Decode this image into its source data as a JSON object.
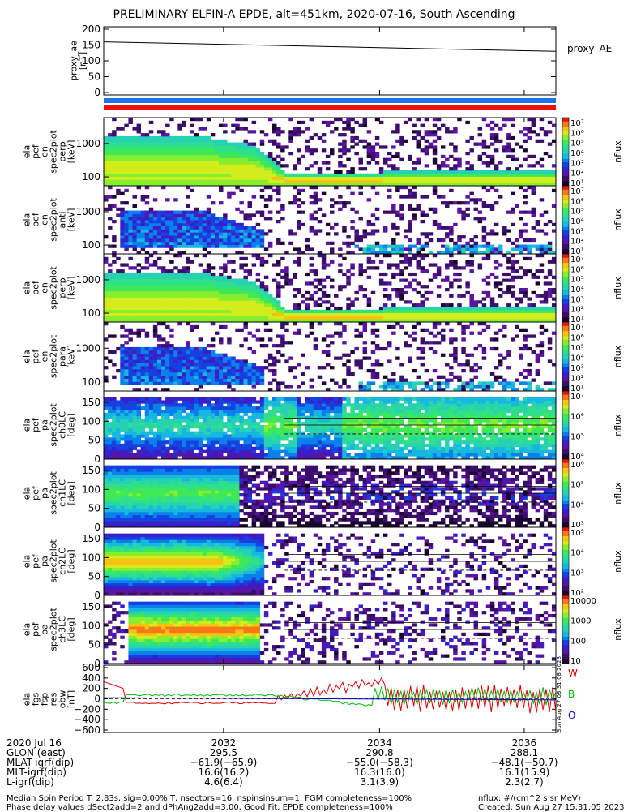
{
  "title": "PRELIMINARY ELFIN-A EPDE, alt=451km, 2020-07-16, South Ascending",
  "ae_panel": {
    "ylabel_lines": [
      "proxy_ae",
      "[nT]"
    ],
    "yticks": [
      "200",
      "150",
      "100",
      "50",
      "0"
    ],
    "legend": "proxy_AE"
  },
  "spec_panels": [
    {
      "ylabel_lines": [
        "ela",
        "pef",
        "en",
        "spec2plot",
        "perp",
        "[keV]"
      ],
      "yticks": [
        "1000",
        "100"
      ],
      "cb_ticks": [
        "10⁷",
        "10⁶",
        "10⁵",
        "10⁴",
        "10³",
        "10²",
        "10¹"
      ],
      "cb_label": "nflux"
    },
    {
      "ylabel_lines": [
        "ela",
        "pef",
        "en",
        "spec2plot",
        "anti",
        "[keV]"
      ],
      "yticks": [
        "1000",
        "100"
      ],
      "cb_ticks": [
        "10⁷",
        "10⁶",
        "10⁵",
        "10⁴",
        "10³",
        "10²",
        "10¹"
      ],
      "cb_label": "nflux"
    },
    {
      "ylabel_lines": [
        "ela",
        "pef",
        "en",
        "spec2plot",
        "perp",
        "[keV]"
      ],
      "yticks": [
        "1000",
        "100"
      ],
      "cb_ticks": [
        "10⁷",
        "10⁶",
        "10⁵",
        "10⁴",
        "10³",
        "10²",
        "10¹"
      ],
      "cb_label": "nflux"
    },
    {
      "ylabel_lines": [
        "ela",
        "pef",
        "en",
        "spec2plot",
        "para",
        "[keV]"
      ],
      "yticks": [
        "1000",
        "100"
      ],
      "cb_ticks": [
        "10⁷",
        "10⁶",
        "10⁵",
        "10⁴",
        "10³",
        "10²",
        "10¹"
      ],
      "cb_label": "nflux"
    },
    {
      "ylabel_lines": [
        "ela",
        "pef",
        "pa",
        "spec2plot",
        "ch0LC",
        "[deg]"
      ],
      "yticks": [
        "150",
        "100",
        "50",
        "0"
      ],
      "cb_ticks": [
        "10⁷",
        "10⁶",
        "10⁵",
        "10⁴"
      ],
      "cb_label": "nflux"
    },
    {
      "ylabel_lines": [
        "ela",
        "pef",
        "pa",
        "spec2plot",
        "ch1LC",
        "[deg]"
      ],
      "yticks": [
        "150",
        "100",
        "50",
        "0"
      ],
      "cb_ticks": [
        "10⁶",
        "10⁵",
        "10⁴",
        "10³"
      ],
      "cb_label": "nflux"
    },
    {
      "ylabel_lines": [
        "ela",
        "pef",
        "pa",
        "spec2plot",
        "ch2LC",
        "[deg]"
      ],
      "yticks": [
        "150",
        "100",
        "50",
        "0"
      ],
      "cb_ticks": [
        "10⁵",
        "10⁴",
        "10³",
        "10²"
      ],
      "cb_label": "nflux"
    },
    {
      "ylabel_lines": [
        "ela",
        "pef",
        "pa",
        "spec2plot",
        "ch3LC",
        "[deg]"
      ],
      "yticks": [
        "150",
        "100",
        "50",
        "0"
      ],
      "cb_ticks": [
        "10000",
        "1000",
        "100",
        "10"
      ],
      "cb_label": "nflux"
    }
  ],
  "fgm_panel": {
    "ylabel_lines": [
      "ela",
      "fgs",
      "fsp",
      "res",
      "obw",
      "[nT]"
    ],
    "yticks": [
      "600",
      "400",
      "200",
      "0",
      "−200",
      "−400",
      "−600"
    ],
    "legend": [
      "W",
      "B",
      "O"
    ],
    "vertical_note": "Sun Aug 27 08:31:08 2023"
  },
  "chart_data": {
    "type": "line",
    "title": "PRELIMINARY ELFIN-A EPDE, alt=451km, 2020-07-16, South Ascending",
    "x_ticks": [
      "2032",
      "2034",
      "2036"
    ],
    "proxy_AE": {
      "x": [
        "2030:30",
        "2036:55"
      ],
      "values": [
        160,
        130
      ],
      "ylim": [
        0,
        200
      ]
    },
    "fgm_ylim": [
      -600,
      600
    ],
    "colors": {
      "W": "#dd0000",
      "B": "#00bb00",
      "O": "#0000cc",
      "band_blue": "#1a73e8",
      "band_red": "#ee1100"
    }
  },
  "bottom": {
    "rows": [
      {
        "label": "2020 Jul 16",
        "values": [
          "2032",
          "2034",
          "2036"
        ]
      },
      {
        "label": "GLON (east)",
        "values": [
          "295.5",
          "290.8",
          "288.1"
        ]
      },
      {
        "label": "MLAT-igrf(dip)",
        "values": [
          "−61.9(−65.9)",
          "−55.0(−58.3)",
          "−48.1(−50.7)"
        ]
      },
      {
        "label": "MLT-igrf(dip)",
        "values": [
          "16.6(16.2)",
          "16.3(16.0)",
          "16.1(15.9)"
        ]
      },
      {
        "label": "L-igrf(dip)",
        "values": [
          "4.6(6.4)",
          "3.1(3.9)",
          "2.3(2.7)"
        ]
      }
    ],
    "footer_left_1": "Median Spin Period T: 2.83s, sig=0.00% T, nsectors=16, nspinsinsum=1, FGM completeness=100%",
    "footer_left_2": "Phase delay values dSect2add=2 and dPhAng2add=3.00, Good Fit, EPDE completeness=100%",
    "footer_right_1": "nflux: #/(cm^2 s sr MeV)",
    "footer_right_2": "Created: Sun Aug 27 15:31:05 2023"
  }
}
